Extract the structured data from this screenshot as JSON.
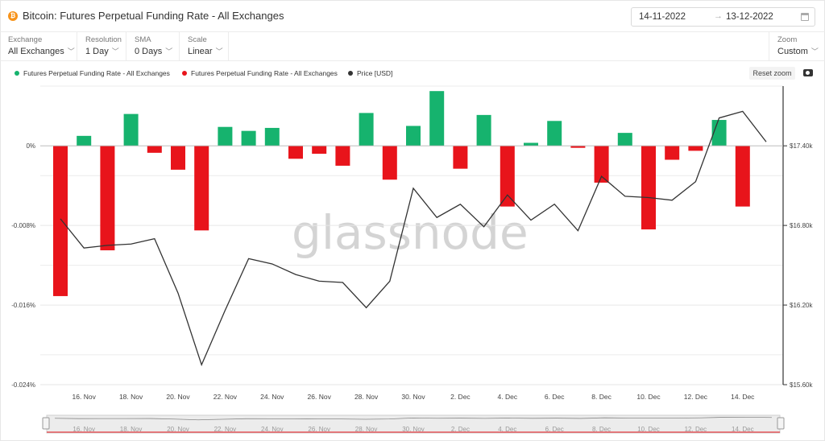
{
  "header": {
    "coin_icon": "bitcoin-icon",
    "title": "Bitcoin: Futures Perpetual Funding Rate - All Exchanges",
    "date_from": "14-11-2022",
    "date_to": "13-12-2022",
    "arrow": "→"
  },
  "toolbar": {
    "exchange": {
      "label": "Exchange",
      "value": "All Exchanges"
    },
    "resolution": {
      "label": "Resolution",
      "value": "1 Day"
    },
    "sma": {
      "label": "SMA",
      "value": "0 Days"
    },
    "scale": {
      "label": "Scale",
      "value": "Linear"
    },
    "zoom": {
      "label": "Zoom",
      "value": "Custom"
    }
  },
  "legend": {
    "items": [
      {
        "label": "Futures Perpetual Funding Rate - All Exchanges",
        "color": "#16b36e"
      },
      {
        "label": "Futures Perpetual Funding Rate - All Exchanges",
        "color": "#e8141b"
      },
      {
        "label": "Price [USD]",
        "color": "#333333"
      }
    ]
  },
  "reset_zoom": "Reset zoom",
  "watermark": "glassnode",
  "chart_data": {
    "type": "bar",
    "title": "Bitcoin: Futures Perpetual Funding Rate - All Exchanges",
    "x": [
      "2022-11-14",
      "2022-11-15",
      "2022-11-16",
      "2022-11-17",
      "2022-11-18",
      "2022-11-19",
      "2022-11-20",
      "2022-11-21",
      "2022-11-22",
      "2022-11-23",
      "2022-11-24",
      "2022-11-25",
      "2022-11-26",
      "2022-11-27",
      "2022-11-28",
      "2022-11-29",
      "2022-11-30",
      "2022-12-01",
      "2022-12-02",
      "2022-12-03",
      "2022-12-04",
      "2022-12-05",
      "2022-12-06",
      "2022-12-07",
      "2022-12-08",
      "2022-12-09",
      "2022-12-10",
      "2022-12-11",
      "2022-12-12",
      "2022-12-13",
      "2022-12-14"
    ],
    "x_tick_labels": [
      "16. Nov",
      "18. Nov",
      "20. Nov",
      "22. Nov",
      "24. Nov",
      "26. Nov",
      "28. Nov",
      "30. Nov",
      "2. Dec",
      "4. Dec",
      "6. Dec",
      "8. Dec",
      "10. Dec",
      "12. Dec",
      "14. Dec"
    ],
    "series": [
      {
        "name": "Futures Perpetual Funding Rate - All Exchanges",
        "axis": "left",
        "type": "bar",
        "positive_color": "#16b36e",
        "negative_color": "#e8141b",
        "values": [
          -0.0151,
          0.001,
          -0.0105,
          0.0032,
          -0.0007,
          -0.0024,
          -0.0085,
          0.0019,
          0.0015,
          0.0018,
          -0.0013,
          -0.0008,
          -0.002,
          0.0033,
          -0.0034,
          0.002,
          0.0055,
          -0.0023,
          0.0031,
          -0.0061,
          0.0003,
          0.0025,
          -0.0002,
          -0.0037,
          0.0013,
          -0.0084,
          -0.0014,
          -0.0005,
          0.0026,
          -0.0061,
          null
        ]
      },
      {
        "name": "Price [USD]",
        "axis": "right",
        "type": "line",
        "color": "#333333",
        "values": [
          16850,
          16630,
          16650,
          16660,
          16700,
          16290,
          15750,
          16160,
          16550,
          16510,
          16430,
          16380,
          16370,
          16180,
          16380,
          17080,
          16860,
          16960,
          16790,
          17030,
          16840,
          16960,
          16760,
          17170,
          17020,
          17010,
          16990,
          17130,
          17610,
          17660,
          17430
        ]
      }
    ],
    "y_left": {
      "ticks": [
        "0%",
        "-0.008%",
        "-0.016%",
        "-0.024%"
      ],
      "range": [
        -0.024,
        0.006
      ]
    },
    "y_right": {
      "ticks": [
        "$17.40k",
        "$16.80k",
        "$16.20k",
        "$15.60k"
      ],
      "range": [
        15600,
        17850
      ]
    },
    "grid": true,
    "legend_position": "top-left",
    "navigator_labels": [
      "16. Nov",
      "18. Nov",
      "20. Nov",
      "22. Nov",
      "24. Nov",
      "26. Nov",
      "28. Nov",
      "30. Nov",
      "2. Dec",
      "4. Dec",
      "6. Dec",
      "8. Dec",
      "10. Dec",
      "12. Dec",
      "14. Dec"
    ]
  }
}
